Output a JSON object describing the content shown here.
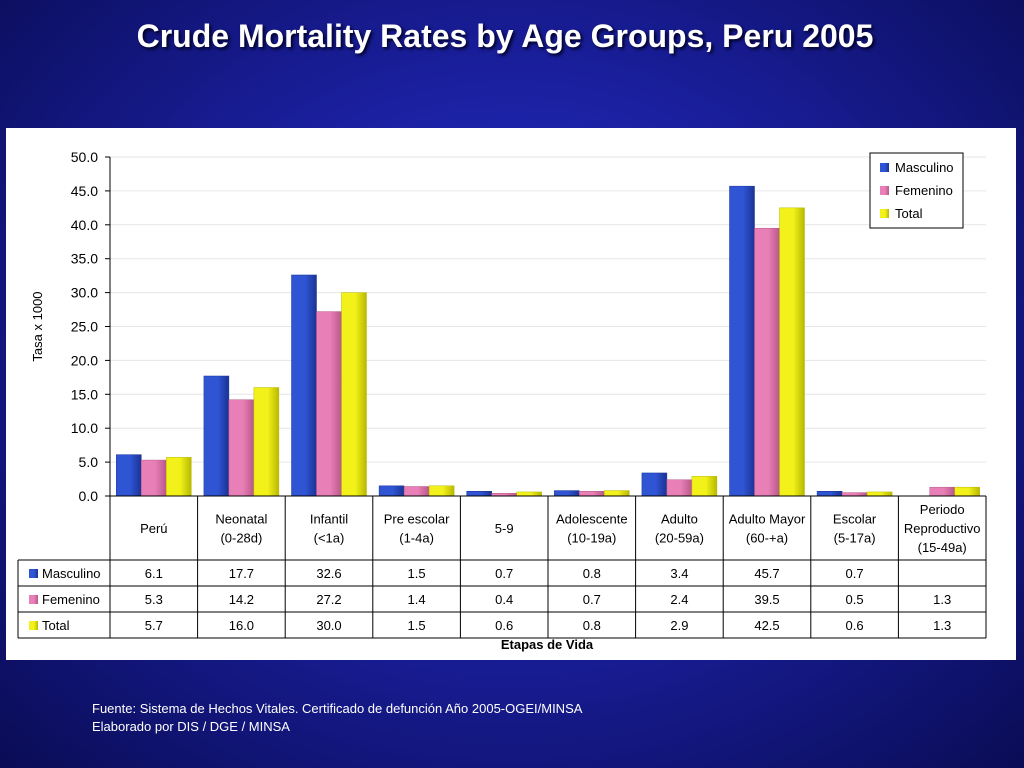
{
  "title": "Crude Mortality Rates by Age Groups, Peru 2005",
  "source": {
    "line1": "Fuente: Sistema de Hechos Vitales. Certificado de defunción Año 2005-OGEI/MINSA",
    "line2": "Elaborado por DIS / DGE / MINSA"
  },
  "colors": {
    "masculino": "#2f55d4",
    "femenino": "#e87fb6",
    "total": "#f2f21a"
  },
  "chart_data": {
    "type": "bar",
    "ylabel": "Tasa x 1000",
    "xlabel": "Etapas de Vida",
    "ylim": [
      0,
      50
    ],
    "yticks": [
      "0.0",
      "5.0",
      "10.0",
      "15.0",
      "20.0",
      "25.0",
      "30.0",
      "35.0",
      "40.0",
      "45.0",
      "50.0"
    ],
    "grid": true,
    "legend_position": "top-right",
    "categories": [
      [
        "Perú"
      ],
      [
        "Neonatal",
        "(0-28d)"
      ],
      [
        "Infantil",
        "(<1a)"
      ],
      [
        "Pre escolar",
        "(1-4a)"
      ],
      [
        "5-9"
      ],
      [
        "Adolescente",
        "(10-19a)"
      ],
      [
        "Adulto",
        "(20-59a)"
      ],
      [
        "Adulto Mayor",
        "(60-+a)"
      ],
      [
        "Escolar",
        "(5-17a)"
      ],
      [
        "Periodo",
        "Reproductivo",
        "(15-49a)"
      ]
    ],
    "series": [
      {
        "name": "Masculino",
        "values": [
          6.1,
          17.7,
          32.6,
          1.5,
          0.7,
          0.8,
          3.4,
          45.7,
          0.7,
          null
        ],
        "labels": [
          "6.1",
          "17.7",
          "32.6",
          "1.5",
          "0.7",
          "0.8",
          "3.4",
          "45.7",
          "0.7",
          ""
        ]
      },
      {
        "name": "Femenino",
        "values": [
          5.3,
          14.2,
          27.2,
          1.4,
          0.4,
          0.7,
          2.4,
          39.5,
          0.5,
          1.3
        ],
        "labels": [
          "5.3",
          "14.2",
          "27.2",
          "1.4",
          "0.4",
          "0.7",
          "2.4",
          "39.5",
          "0.5",
          "1.3"
        ]
      },
      {
        "name": "Total",
        "values": [
          5.7,
          16.0,
          30.0,
          1.5,
          0.6,
          0.8,
          2.9,
          42.5,
          0.6,
          1.3
        ],
        "labels": [
          "5.7",
          "16.0",
          "30.0",
          "1.5",
          "0.6",
          "0.8",
          "2.9",
          "42.5",
          "0.6",
          "1.3"
        ]
      }
    ]
  }
}
